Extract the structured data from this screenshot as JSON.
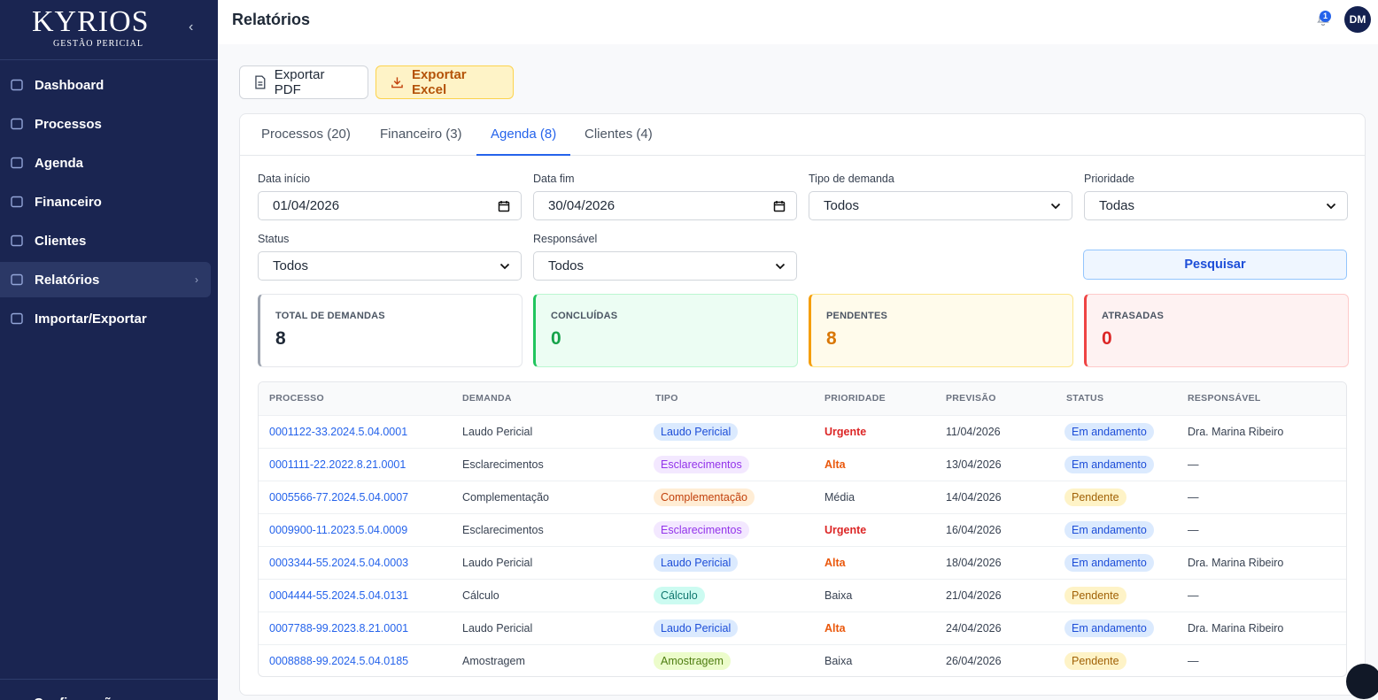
{
  "sidebar": {
    "logo": "KYRIOS",
    "logo_sub": "GESTÃO PERICIAL",
    "nav": [
      "Dashboard",
      "Processos",
      "Agenda",
      "Financeiro",
      "Clientes",
      "Relatórios",
      "Importar/Exportar"
    ],
    "active": 5,
    "footer": "Configurações"
  },
  "header": {
    "title": "Relatórios",
    "notifications": 1,
    "avatar": "DM"
  },
  "actions": [
    "Exportar PDF",
    "Exportar Excel"
  ],
  "tabs": [
    "Processos (20)",
    "Financeiro (3)",
    "Agenda (8)",
    "Clientes (4)"
  ],
  "active_tab": 2,
  "filters": [
    {
      "label": "Data início",
      "value": "01/04/2026",
      "kind": "date"
    },
    {
      "label": "Data fim",
      "value": "30/04/2026",
      "kind": "date"
    },
    {
      "label": "Tipo de demanda",
      "value": "Todos",
      "kind": "select"
    },
    {
      "label": "Prioridade",
      "value": "Todas",
      "kind": "select"
    },
    {
      "label": "Status",
      "value": "Todos",
      "kind": "select"
    },
    {
      "label": "Responsável",
      "value": "Todos",
      "kind": "select"
    }
  ],
  "search": "Pesquisar",
  "stats": [
    {
      "label": "TOTAL DE DEMANDAS",
      "value": 8,
      "color": "gray"
    },
    {
      "label": "CONCLUÍDAS",
      "value": 0,
      "color": "green"
    },
    {
      "label": "PENDENTES",
      "value": 8,
      "color": "orange"
    },
    {
      "label": "ATRASADAS",
      "value": 0,
      "color": "red"
    }
  ],
  "table": {
    "columns": [
      "PROCESSO",
      "DEMANDA",
      "TIPO",
      "PRIORIDADE",
      "PREVISÃO",
      "STATUS",
      "RESPONSÁVEL"
    ],
    "rows": [
      {
        "cells": [
          "0001122-33.2024.5.04.0001",
          "Laudo Pericial",
          "Laudo Pericial",
          "Urgente",
          "11/04/2026",
          "Em andamento",
          "Dra. Marina Ribeiro"
        ],
        "colors": {
          "tipo": "blue",
          "prioridade": "red",
          "status": "blue"
        }
      },
      {
        "cells": [
          "0001111-22.2022.8.21.0001",
          "Esclarecimentos",
          "Esclarecimentos",
          "Alta",
          "13/04/2026",
          "Em andamento",
          "—"
        ],
        "colors": {
          "tipo": "purple",
          "prioridade": "orange",
          "status": "blue"
        }
      },
      {
        "cells": [
          "0005566-77.2024.5.04.0007",
          "Complementação",
          "Complementação",
          "Média",
          "14/04/2026",
          "Pendente",
          "—"
        ],
        "colors": {
          "tipo": "orange",
          "prioridade": "gray",
          "status": "yellow"
        }
      },
      {
        "cells": [
          "0009900-11.2023.5.04.0009",
          "Esclarecimentos",
          "Esclarecimentos",
          "Urgente",
          "16/04/2026",
          "Em andamento",
          "—"
        ],
        "colors": {
          "tipo": "purple",
          "prioridade": "red",
          "status": "blue"
        }
      },
      {
        "cells": [
          "0003344-55.2024.5.04.0003",
          "Laudo Pericial",
          "Laudo Pericial",
          "Alta",
          "18/04/2026",
          "Em andamento",
          "Dra. Marina Ribeiro"
        ],
        "colors": {
          "tipo": "blue",
          "prioridade": "orange",
          "status": "blue"
        }
      },
      {
        "cells": [
          "0004444-55.2024.5.04.0131",
          "Cálculo",
          "Cálculo",
          "Baixa",
          "21/04/2026",
          "Pendente",
          "—"
        ],
        "colors": {
          "tipo": "teal",
          "prioridade": "gray",
          "status": "yellow"
        }
      },
      {
        "cells": [
          "0007788-99.2023.8.21.0001",
          "Laudo Pericial",
          "Laudo Pericial",
          "Alta",
          "24/04/2026",
          "Em andamento",
          "Dra. Marina Ribeiro"
        ],
        "colors": {
          "tipo": "blue",
          "prioridade": "orange",
          "status": "blue"
        }
      },
      {
        "cells": [
          "0008888-99.2024.5.04.0185",
          "Amostragem",
          "Amostragem",
          "Baixa",
          "26/04/2026",
          "Pendente",
          "—"
        ],
        "colors": {
          "tipo": "lime",
          "prioridade": "gray",
          "status": "yellow"
        }
      }
    ]
  }
}
